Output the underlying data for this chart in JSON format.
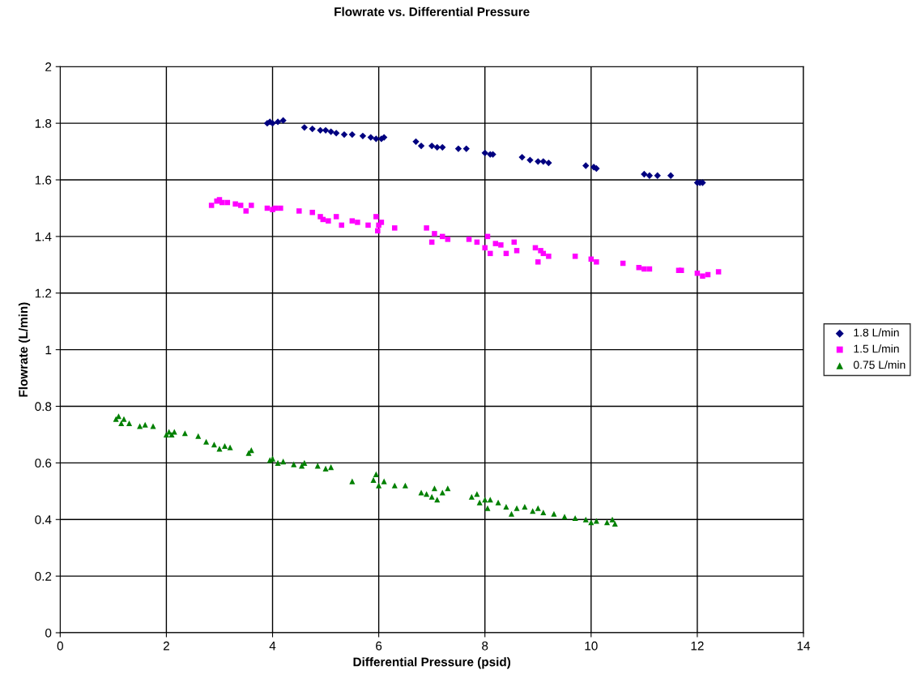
{
  "chart_data": {
    "type": "scatter",
    "title": "Flowrate vs. Differential Pressure",
    "xlabel": "Differential Pressure (psid)",
    "ylabel": "Flowrate (L/min)",
    "xlim": [
      0,
      14
    ],
    "xticks": [
      0,
      2,
      4,
      6,
      8,
      10,
      12,
      14
    ],
    "ylim": [
      0,
      2
    ],
    "yticks": [
      0,
      0.2,
      0.4,
      0.6,
      0.8,
      1,
      1.2,
      1.4,
      1.6,
      1.8,
      2
    ],
    "grid": true,
    "legend": "right",
    "series": [
      {
        "name": "1.8 L/min",
        "color": "#000080",
        "marker": "diamond",
        "x": [
          3.9,
          3.95,
          4.0,
          4.1,
          4.2,
          4.6,
          4.75,
          4.9,
          5.0,
          5.1,
          5.2,
          5.35,
          5.5,
          5.7,
          5.85,
          5.95,
          6.05,
          6.1,
          6.7,
          6.8,
          7.0,
          7.1,
          7.2,
          7.5,
          7.65,
          8.0,
          8.1,
          8.15,
          8.7,
          8.85,
          9.0,
          9.1,
          9.2,
          9.9,
          10.05,
          10.1,
          11.0,
          11.1,
          11.25,
          11.5,
          12.0,
          12.05,
          12.1
        ],
        "values": [
          1.8,
          1.805,
          1.8,
          1.805,
          1.81,
          1.785,
          1.78,
          1.775,
          1.775,
          1.77,
          1.765,
          1.76,
          1.76,
          1.755,
          1.75,
          1.745,
          1.745,
          1.75,
          1.735,
          1.72,
          1.72,
          1.715,
          1.715,
          1.71,
          1.71,
          1.695,
          1.69,
          1.69,
          1.68,
          1.67,
          1.665,
          1.665,
          1.66,
          1.65,
          1.645,
          1.64,
          1.62,
          1.615,
          1.615,
          1.615,
          1.59,
          1.59,
          1.59
        ]
      },
      {
        "name": "1.5 L/min",
        "color": "#ff00ff",
        "marker": "square",
        "x": [
          2.85,
          2.95,
          3.0,
          3.05,
          3.15,
          3.3,
          3.4,
          3.5,
          3.6,
          3.9,
          4.0,
          4.05,
          4.15,
          4.5,
          4.75,
          4.9,
          4.95,
          5.05,
          5.2,
          5.3,
          5.5,
          5.6,
          5.8,
          5.95,
          5.98,
          6.0,
          6.05,
          6.3,
          6.9,
          7.0,
          7.05,
          7.2,
          7.3,
          7.7,
          7.85,
          8.0,
          8.05,
          8.1,
          8.2,
          8.3,
          8.4,
          8.55,
          8.6,
          8.95,
          9.0,
          9.05,
          9.1,
          9.2,
          9.7,
          10.0,
          10.1,
          10.6,
          10.9,
          11.0,
          11.1,
          11.65,
          11.7,
          12.0,
          12.1,
          12.2,
          12.4
        ],
        "values": [
          1.51,
          1.525,
          1.53,
          1.52,
          1.52,
          1.515,
          1.51,
          1.49,
          1.51,
          1.5,
          1.495,
          1.5,
          1.5,
          1.49,
          1.485,
          1.47,
          1.46,
          1.455,
          1.47,
          1.44,
          1.455,
          1.45,
          1.44,
          1.47,
          1.42,
          1.44,
          1.45,
          1.43,
          1.43,
          1.38,
          1.41,
          1.4,
          1.39,
          1.39,
          1.38,
          1.36,
          1.4,
          1.34,
          1.375,
          1.37,
          1.34,
          1.38,
          1.35,
          1.36,
          1.31,
          1.35,
          1.34,
          1.33,
          1.33,
          1.32,
          1.31,
          1.305,
          1.29,
          1.285,
          1.285,
          1.28,
          1.28,
          1.27,
          1.26,
          1.265,
          1.275
        ]
      },
      {
        "name": "0.75 L/min",
        "color": "#008000",
        "marker": "triangle",
        "x": [
          1.05,
          1.1,
          1.15,
          1.2,
          1.3,
          1.5,
          1.6,
          1.75,
          2.0,
          2.05,
          2.1,
          2.15,
          2.35,
          2.6,
          2.75,
          2.9,
          3.0,
          3.1,
          3.2,
          3.55,
          3.6,
          3.95,
          4.0,
          4.1,
          4.2,
          4.4,
          4.55,
          4.6,
          4.85,
          5.0,
          5.1,
          5.5,
          5.9,
          5.95,
          6.0,
          6.1,
          6.3,
          6.5,
          6.8,
          6.9,
          7.0,
          7.05,
          7.1,
          7.2,
          7.3,
          7.75,
          7.85,
          7.9,
          8.0,
          8.05,
          8.1,
          8.25,
          8.4,
          8.5,
          8.6,
          8.75,
          8.9,
          9.0,
          9.1,
          9.3,
          9.5,
          9.7,
          9.9,
          10.0,
          10.1,
          10.3,
          10.4,
          10.45
        ],
        "values": [
          0.755,
          0.765,
          0.74,
          0.755,
          0.74,
          0.73,
          0.735,
          0.73,
          0.7,
          0.71,
          0.7,
          0.71,
          0.705,
          0.695,
          0.675,
          0.665,
          0.65,
          0.66,
          0.655,
          0.635,
          0.645,
          0.61,
          0.615,
          0.6,
          0.605,
          0.595,
          0.59,
          0.6,
          0.59,
          0.58,
          0.585,
          0.535,
          0.54,
          0.56,
          0.52,
          0.535,
          0.52,
          0.52,
          0.495,
          0.49,
          0.48,
          0.51,
          0.47,
          0.495,
          0.51,
          0.48,
          0.49,
          0.46,
          0.47,
          0.44,
          0.47,
          0.46,
          0.445,
          0.42,
          0.44,
          0.445,
          0.43,
          0.44,
          0.425,
          0.42,
          0.41,
          0.405,
          0.4,
          0.39,
          0.395,
          0.39,
          0.4,
          0.385
        ]
      }
    ]
  }
}
